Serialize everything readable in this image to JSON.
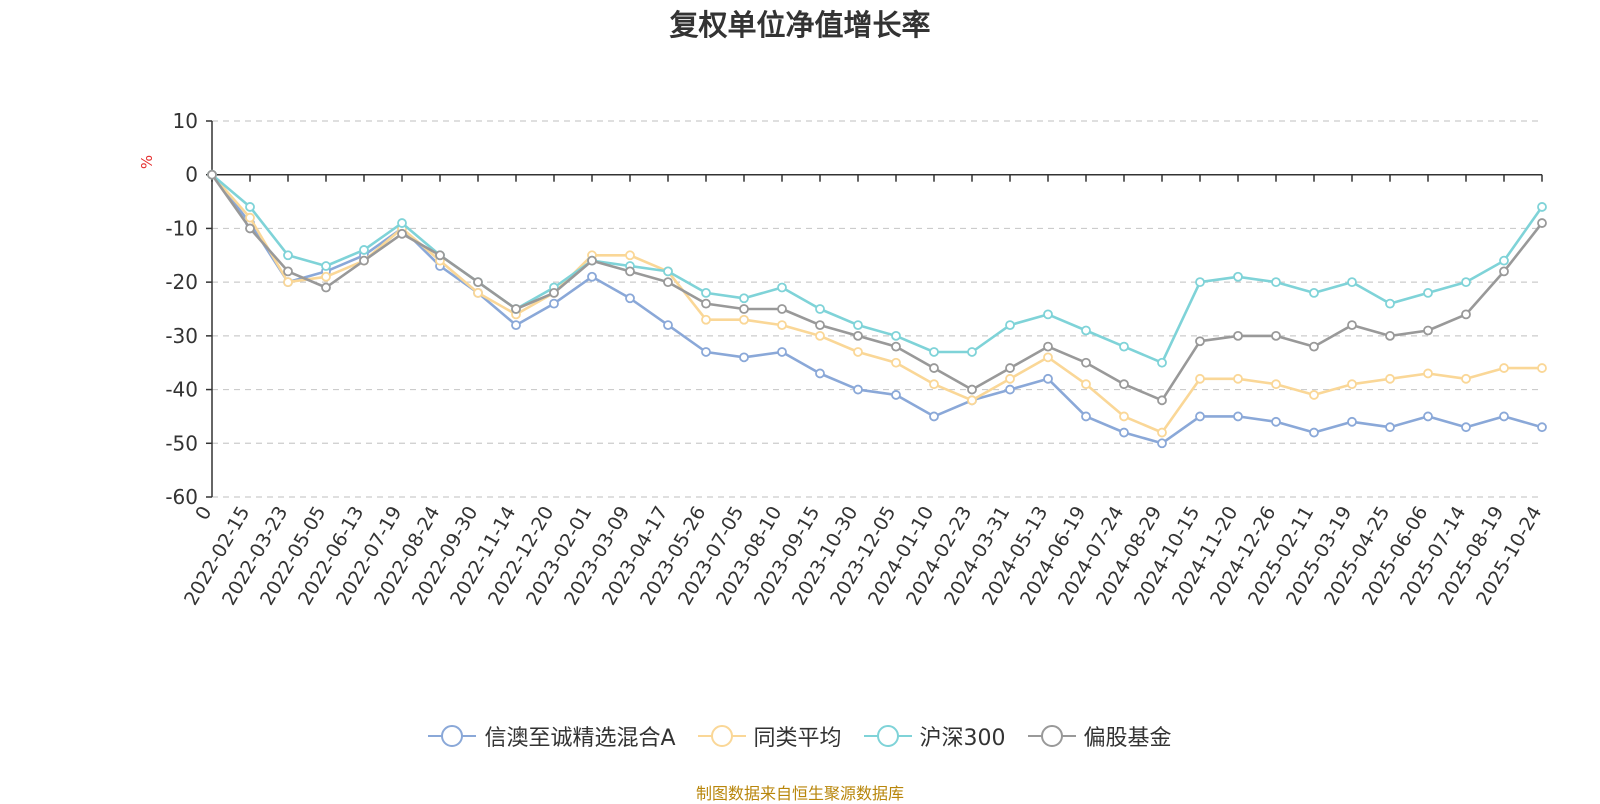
{
  "chart_data": {
    "type": "line",
    "title": "复权单位净值增长率",
    "ylabel": "%",
    "ylim": [
      -60,
      10
    ],
    "yticks": [
      10,
      0,
      -10,
      -20,
      -30,
      -40,
      -50,
      -60
    ],
    "grid": true,
    "x": [
      "0",
      "2022-02-15",
      "2022-03-23",
      "2022-05-05",
      "2022-06-13",
      "2022-07-19",
      "2022-08-24",
      "2022-09-30",
      "2022-11-14",
      "2022-12-20",
      "2023-02-01",
      "2023-03-09",
      "2023-04-17",
      "2023-05-26",
      "2023-07-05",
      "2023-08-10",
      "2023-09-15",
      "2023-10-30",
      "2023-12-05",
      "2024-01-10",
      "2024-02-23",
      "2024-03-31",
      "2024-05-13",
      "2024-06-19",
      "2024-07-24",
      "2024-08-29",
      "2024-10-15",
      "2024-11-20",
      "2024-12-26",
      "2025-02-11",
      "2025-03-19",
      "2025-04-25",
      "2025-06-06",
      "2025-07-14",
      "2025-08-19",
      "2025-10-24"
    ],
    "series": [
      {
        "name": "信澳至诚精选混合A",
        "color": "#8aa8d8",
        "values": [
          0,
          -9,
          -20,
          -18,
          -15,
          -10,
          -17,
          -22,
          -28,
          -24,
          -19,
          -23,
          -28,
          -33,
          -34,
          -33,
          -37,
          -40,
          -41,
          -45,
          -42,
          -40,
          -38,
          -45,
          -48,
          -50,
          -45,
          -45,
          -46,
          -48,
          -46,
          -47,
          -45,
          -47,
          -45,
          -47
        ]
      },
      {
        "name": "同类平均",
        "color": "#fad797",
        "values": [
          0,
          -8,
          -20,
          -19,
          -16,
          -10,
          -16,
          -22,
          -26,
          -22,
          -15,
          -15,
          -18,
          -27,
          -27,
          -28,
          -30,
          -33,
          -35,
          -39,
          -42,
          -38,
          -34,
          -39,
          -45,
          -48,
          -38,
          -38,
          -39,
          -41,
          -39,
          -38,
          -37,
          -38,
          -36,
          -36
        ]
      },
      {
        "name": "沪深300",
        "color": "#7fd3d8",
        "values": [
          0,
          -6,
          -15,
          -17,
          -14,
          -9,
          -15,
          -20,
          -25,
          -21,
          -16,
          -17,
          -18,
          -22,
          -23,
          -21,
          -25,
          -28,
          -30,
          -33,
          -33,
          -28,
          -26,
          -29,
          -32,
          -35,
          -20,
          -19,
          -20,
          -22,
          -20,
          -24,
          -22,
          -20,
          -16,
          -6
        ]
      },
      {
        "name": "偏股基金",
        "color": "#999999",
        "values": [
          0,
          -10,
          -18,
          -21,
          -16,
          -11,
          -15,
          -20,
          -25,
          -22,
          -16,
          -18,
          -20,
          -24,
          -25,
          -25,
          -28,
          -30,
          -32,
          -36,
          -40,
          -36,
          -32,
          -35,
          -39,
          -42,
          -31,
          -30,
          -30,
          -32,
          -28,
          -30,
          -29,
          -26,
          -18,
          -9
        ]
      }
    ]
  },
  "source": "制图数据来自恒生聚源数据库"
}
